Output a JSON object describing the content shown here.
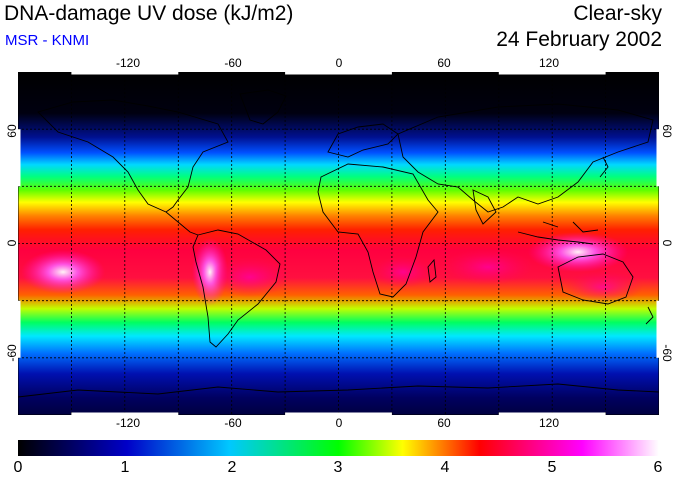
{
  "header": {
    "title": "DNA-damage UV dose (kJ/m2)",
    "source": "MSR - KNMI",
    "sky_condition": "Clear-sky",
    "date": "24 February 2002"
  },
  "map": {
    "projection": "equirectangular",
    "lon_ticks": [
      "-120",
      "-60",
      "0",
      "60",
      "120"
    ],
    "lat_ticks_left": [
      "60",
      "0",
      "-60"
    ],
    "lat_ticks_right": [
      "60",
      "0",
      "-60"
    ],
    "gridlines": "dashed",
    "land_outline_color": "#000000"
  },
  "colorbar": {
    "labels": [
      "0",
      "1",
      "2",
      "3",
      "4",
      "5",
      "6"
    ],
    "min": 0,
    "max": 6,
    "colors": [
      "#000000",
      "#0000c8",
      "#00c8ff",
      "#00ff00",
      "#ffff00",
      "#ff0000",
      "#ff00ff",
      "#ffffff"
    ]
  }
}
